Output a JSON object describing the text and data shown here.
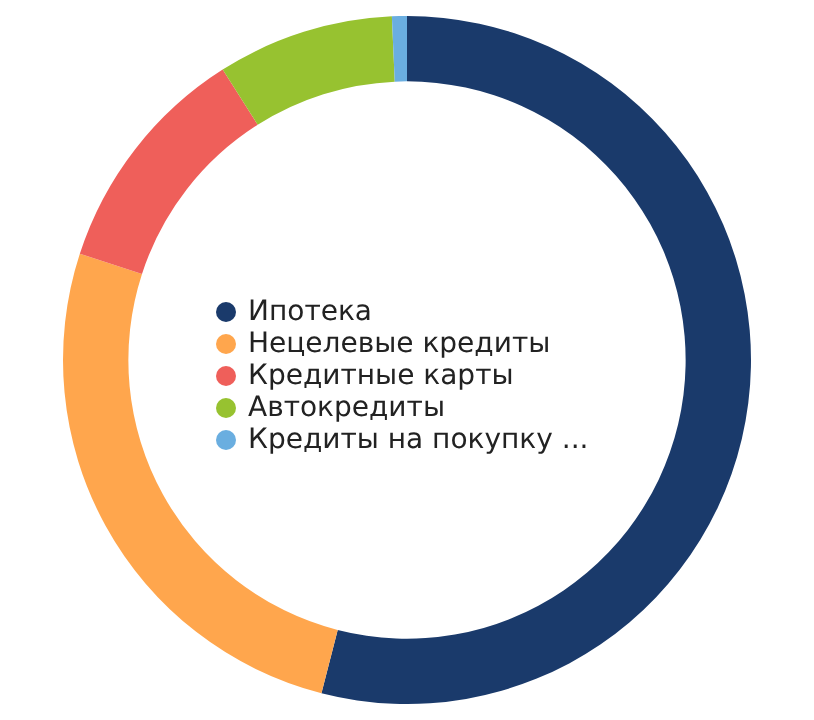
{
  "chart_data": {
    "type": "donut",
    "categories": [
      "Ипотека",
      "Нецелевые кредиты",
      "Кредитные карты",
      "Автокредиты",
      "Кредиты на покупку ..."
    ],
    "values": [
      54,
      26,
      11,
      8.3,
      0.7
    ],
    "colors": [
      "#1a3a6b",
      "#ffa64d",
      "#ef5f5a",
      "#97c230",
      "#6aaee0"
    ],
    "legend": "center"
  }
}
